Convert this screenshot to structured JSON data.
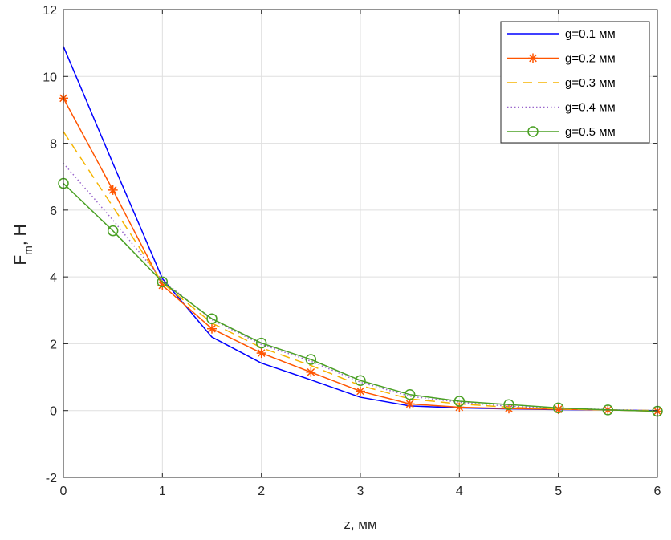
{
  "chart_data": {
    "type": "line",
    "xlabel": "z, мм",
    "ylabel": {
      "main": "F",
      "sub": "m",
      "rest": ", Н"
    },
    "xlim": [
      0,
      6
    ],
    "ylim": [
      -2,
      12
    ],
    "xticks": [
      0,
      1,
      2,
      3,
      4,
      5,
      6
    ],
    "yticks": [
      -2,
      0,
      2,
      4,
      6,
      8,
      10,
      12
    ],
    "xtick_labels": [
      "0",
      "1",
      "2",
      "3",
      "4",
      "5",
      "6"
    ],
    "ytick_labels": [
      "-2",
      "0",
      "2",
      "4",
      "6",
      "8",
      "10",
      "12"
    ],
    "grid": true,
    "legend_position": "top-right",
    "x": [
      0,
      0.5,
      1,
      1.5,
      2,
      2.5,
      3,
      3.5,
      4,
      4.5,
      5,
      5.5,
      6
    ],
    "series": [
      {
        "name": "g=0.1 мм",
        "color": "#0000ff",
        "dash": "solid",
        "marker": "none",
        "values": [
          10.9,
          7.4,
          3.95,
          2.2,
          1.42,
          0.92,
          0.4,
          0.14,
          0.08,
          0.05,
          0.03,
          0.02,
          0.0
        ]
      },
      {
        "name": "g=0.2 мм",
        "color": "#ff5500",
        "dash": "solid",
        "marker": "asterisk",
        "values": [
          9.35,
          6.6,
          3.75,
          2.45,
          1.72,
          1.15,
          0.58,
          0.2,
          0.1,
          0.06,
          0.04,
          0.02,
          -0.02
        ]
      },
      {
        "name": "g=0.3 мм",
        "color": "#f5b400",
        "dash": "dashed",
        "marker": "none",
        "values": [
          8.35,
          6.1,
          3.82,
          2.62,
          1.88,
          1.35,
          0.75,
          0.35,
          0.2,
          0.1,
          0.05,
          0.02,
          0.0
        ]
      },
      {
        "name": "g=0.4 мм",
        "color": "#9966cc",
        "dash": "dotted",
        "marker": "none",
        "values": [
          7.4,
          5.7,
          3.9,
          2.72,
          1.98,
          1.48,
          0.85,
          0.43,
          0.25,
          0.13,
          0.07,
          0.03,
          0.0
        ]
      },
      {
        "name": "g=0.5 мм",
        "color": "#4aa024",
        "dash": "solid",
        "marker": "circle",
        "values": [
          6.8,
          5.38,
          3.85,
          2.75,
          2.02,
          1.53,
          0.9,
          0.48,
          0.28,
          0.18,
          0.08,
          0.02,
          -0.02
        ]
      }
    ]
  }
}
